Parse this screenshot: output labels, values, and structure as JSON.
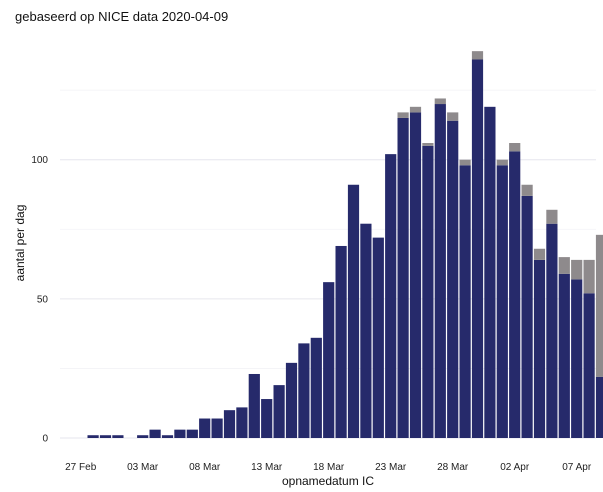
{
  "chart_data": {
    "type": "bar",
    "subtitle": "gebaseerd op NICE data 2020-04-09",
    "xlabel": "opnamedatum IC",
    "ylabel": "aantal per dag",
    "stacked": true,
    "x_tick_labels": [
      "27 Feb",
      "03 Mar",
      "08 Mar",
      "13 Mar",
      "18 Mar",
      "23 Mar",
      "28 Mar",
      "02 Apr",
      "07 Apr"
    ],
    "y_ticks": [
      0,
      50,
      100
    ],
    "ylim": [
      0,
      140
    ],
    "grid": true,
    "categories": [
      "2020-02-28",
      "2020-02-29",
      "2020-03-01",
      "2020-03-02",
      "2020-03-03",
      "2020-03-04",
      "2020-03-05",
      "2020-03-06",
      "2020-03-07",
      "2020-03-08",
      "2020-03-09",
      "2020-03-10",
      "2020-03-11",
      "2020-03-12",
      "2020-03-13",
      "2020-03-14",
      "2020-03-15",
      "2020-03-16",
      "2020-03-17",
      "2020-03-18",
      "2020-03-19",
      "2020-03-20",
      "2020-03-21",
      "2020-03-22",
      "2020-03-23",
      "2020-03-24",
      "2020-03-25",
      "2020-03-26",
      "2020-03-27",
      "2020-03-28",
      "2020-03-29",
      "2020-03-30",
      "2020-03-31",
      "2020-04-01",
      "2020-04-02",
      "2020-04-03",
      "2020-04-04",
      "2020-04-05",
      "2020-04-06",
      "2020-04-07",
      "2020-04-08",
      "2020-04-09"
    ],
    "series": [
      {
        "color": "#262a6b",
        "values": [
          1,
          1,
          1,
          0,
          1,
          3,
          1,
          3,
          3,
          7,
          7,
          10,
          11,
          23,
          14,
          19,
          27,
          34,
          36,
          56,
          69,
          91,
          77,
          72,
          102,
          115,
          117,
          105,
          120,
          114,
          98,
          136,
          119,
          98,
          103,
          87,
          64,
          77,
          59,
          57,
          52,
          22
        ]
      },
      {
        "color": "#8e8a8c",
        "values": [
          0,
          0,
          0,
          0,
          0,
          0,
          0,
          0,
          0,
          0,
          0,
          0,
          0,
          0,
          0,
          0,
          0,
          0,
          0,
          0,
          0,
          0,
          0,
          0,
          0,
          2,
          2,
          1,
          2,
          3,
          2,
          3,
          0,
          2,
          3,
          4,
          4,
          5,
          6,
          7,
          12,
          51
        ]
      }
    ]
  }
}
